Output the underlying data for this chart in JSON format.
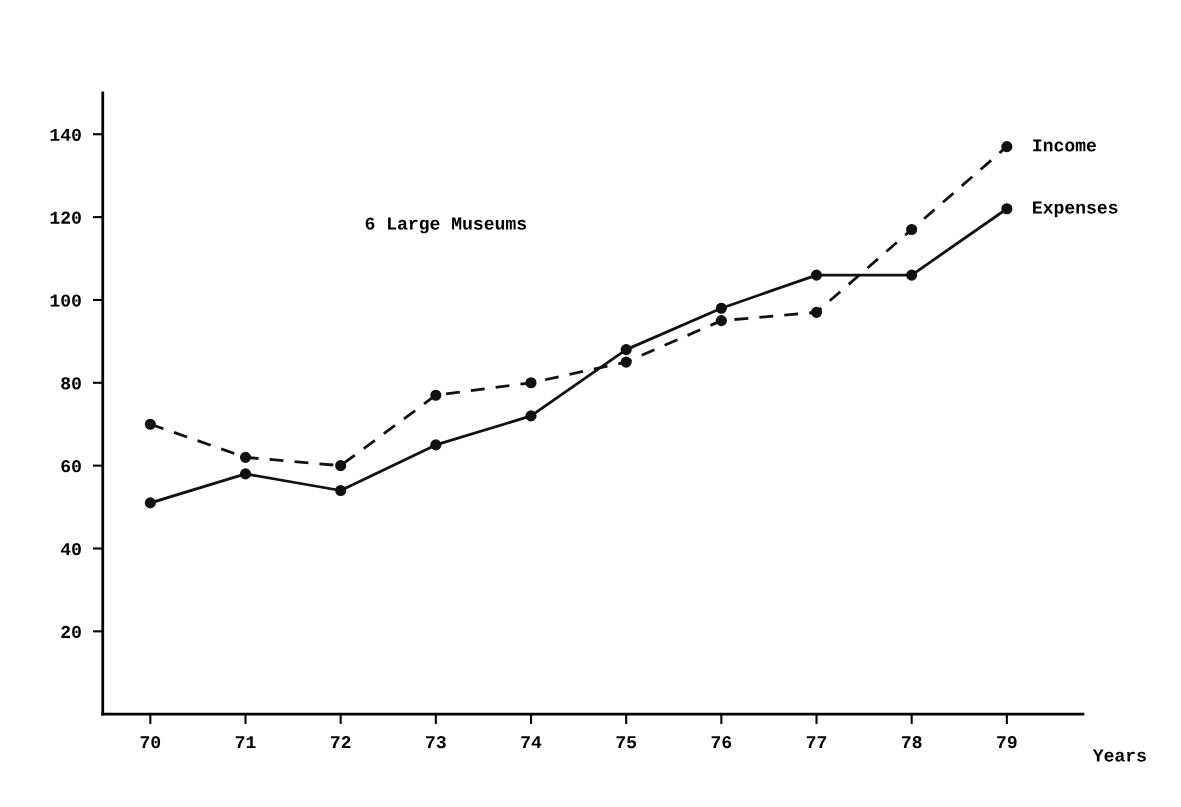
{
  "chart_data": {
    "type": "line",
    "xlabel": "Years",
    "x": [
      70,
      71,
      72,
      73,
      74,
      75,
      76,
      77,
      78,
      79
    ],
    "series": [
      {
        "name": "Income",
        "color": "#111111",
        "line_style": "dashed",
        "values": [
          70,
          62,
          60,
          77,
          80,
          85,
          95,
          97,
          117,
          137
        ]
      },
      {
        "name": "Expenses",
        "color": "#111111",
        "line_style": "solid",
        "values": [
          51,
          58,
          54,
          65,
          72,
          88,
          98,
          106,
          106,
          122
        ]
      }
    ],
    "marker": "circle",
    "annotations": [
      "6 Large Museums"
    ],
    "xlim": [
      69.5,
      79.8
    ],
    "xticks": [
      70,
      71,
      72,
      73,
      74,
      75,
      76,
      77,
      78,
      79
    ],
    "ylim": [
      0,
      150
    ],
    "yticks": [
      20,
      40,
      60,
      80,
      100,
      120,
      140
    ],
    "grid": false,
    "legend": false
  }
}
